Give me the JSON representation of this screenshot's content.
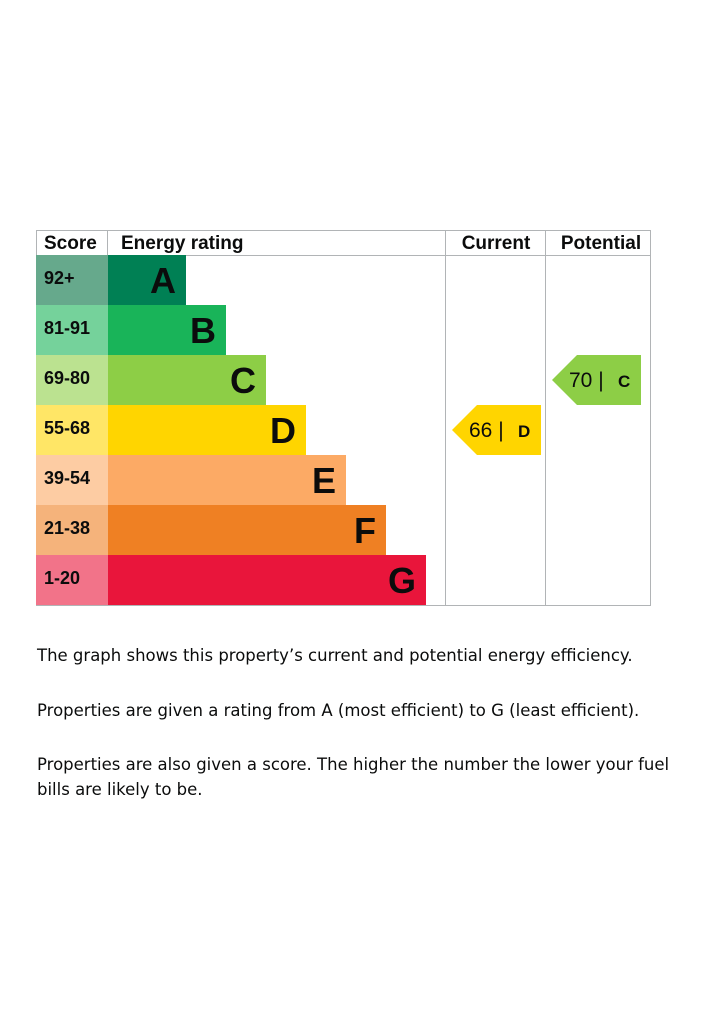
{
  "chart_data": {
    "type": "bar",
    "headers": {
      "score": "Score",
      "rating": "Energy rating",
      "current": "Current",
      "potential": "Potential"
    },
    "bands": [
      {
        "letter": "A",
        "range": "92+",
        "min": 92,
        "max": 100,
        "color": "#008054",
        "score_bg": "#66a98c"
      },
      {
        "letter": "B",
        "range": "81-91",
        "min": 81,
        "max": 91,
        "color": "#19b459",
        "score_bg": "#75d29b"
      },
      {
        "letter": "C",
        "range": "69-80",
        "min": 69,
        "max": 80,
        "color": "#8dce46",
        "score_bg": "#bbe290"
      },
      {
        "letter": "D",
        "range": "55-68",
        "min": 55,
        "max": 68,
        "color": "#ffd500",
        "score_bg": "#ffe666"
      },
      {
        "letter": "E",
        "range": "39-54",
        "min": 39,
        "max": 54,
        "color": "#fcaa65",
        "score_bg": "#fdcca3"
      },
      {
        "letter": "F",
        "range": "21-38",
        "min": 21,
        "max": 38,
        "color": "#ef8023",
        "score_bg": "#f5b37b"
      },
      {
        "letter": "G",
        "range": "1-20",
        "min": 1,
        "max": 20,
        "color": "#e9153b",
        "score_bg": "#f27389"
      }
    ],
    "current": {
      "score": 66,
      "band": "D",
      "label": "66 |"
    },
    "potential": {
      "score": 70,
      "band": "C",
      "label": "70 |"
    }
  },
  "description": {
    "line1": "The graph shows this property’s current and potential energy efficiency.",
    "line2": "Properties are given a rating from A (most efficient) to G (least efficient).",
    "line3": "Properties are also given a score. The higher the number the lower your fuel bills are likely to be."
  }
}
